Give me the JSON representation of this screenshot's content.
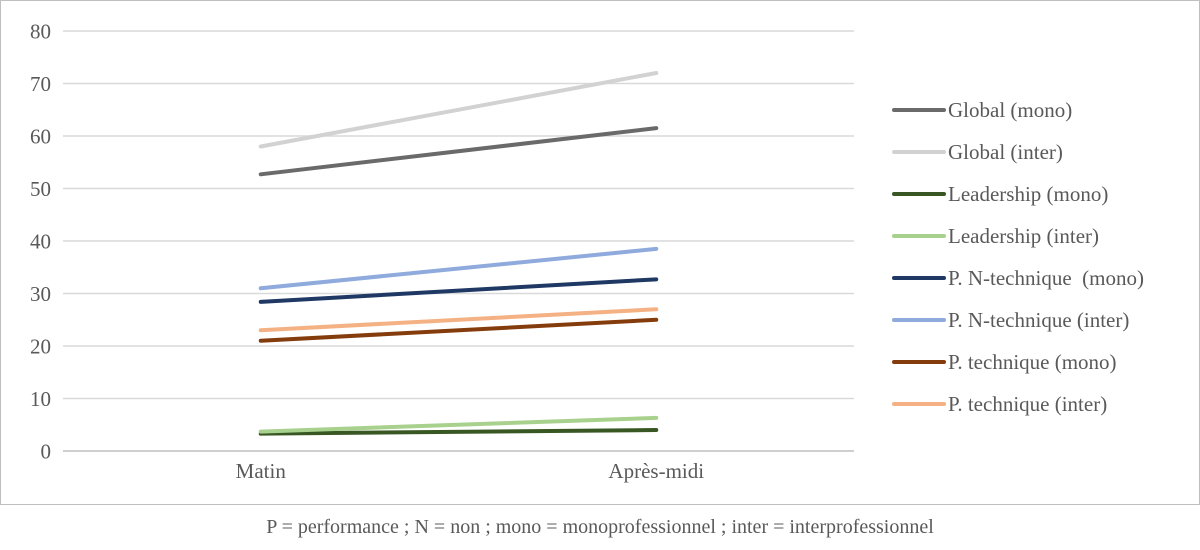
{
  "chart_data": {
    "type": "line",
    "categories": [
      "Matin",
      "Après-midi"
    ],
    "series": [
      {
        "name": "Global (mono)",
        "values": [
          52.7,
          61.5
        ],
        "color": "#6a6a6a"
      },
      {
        "name": "Global (inter)",
        "values": [
          58.0,
          72.0
        ],
        "color": "#d2d2d2"
      },
      {
        "name": "Leadership (mono)",
        "values": [
          3.3,
          4.0
        ],
        "color": "#385723"
      },
      {
        "name": "Leadership (inter)",
        "values": [
          3.7,
          6.3
        ],
        "color": "#a9d18e"
      },
      {
        "name": "P. N-technique  (mono)",
        "values": [
          28.4,
          32.7
        ],
        "color": "#1f3864"
      },
      {
        "name": "P. N-technique (inter)",
        "values": [
          31.0,
          38.5
        ],
        "color": "#8faadc"
      },
      {
        "name": "P. technique (mono)",
        "values": [
          21.0,
          25.0
        ],
        "color": "#843c0c"
      },
      {
        "name": "P. technique (inter)",
        "values": [
          23.0,
          27.0
        ],
        "color": "#f4b183"
      }
    ],
    "title": "",
    "xlabel": "",
    "ylabel": "",
    "ylim": [
      0,
      80
    ],
    "ytick_step": 10,
    "ytick_labels": [
      "0",
      "10",
      "20",
      "30",
      "40",
      "50",
      "60",
      "70",
      "80"
    ],
    "grid": true,
    "legend_position": "right"
  },
  "caption": "P = performance ; N = non ; mono = monoprofessionnel ; inter = interprofessionnel",
  "colors": {
    "grid": "#d9d9d9",
    "axis": "#bfbfbf",
    "text": "#595959",
    "frame_border": "#bfbfbf"
  }
}
